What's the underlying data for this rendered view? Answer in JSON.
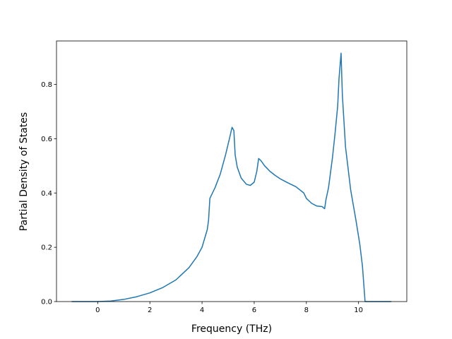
{
  "chart_data": {
    "type": "line",
    "title": "",
    "xlabel": "Frequency (THz)",
    "ylabel": "Partial Density of States",
    "xlim": [
      -1.58,
      11.85
    ],
    "ylim": [
      0.0,
      0.96
    ],
    "x_ticks": [
      0,
      2,
      4,
      6,
      8,
      10
    ],
    "y_ticks": [
      0.0,
      0.2,
      0.4,
      0.6,
      0.8
    ],
    "x_tick_labels": [
      "0",
      "2",
      "4",
      "6",
      "8",
      "10"
    ],
    "y_tick_labels": [
      "0.0",
      "0.2",
      "0.4",
      "0.6",
      "0.8"
    ],
    "grid": false,
    "legend": "none",
    "series": [
      {
        "color": "#1f77b4",
        "points": [
          [
            -1.0,
            0.0
          ],
          [
            0.0,
            0.0
          ],
          [
            0.5,
            0.002
          ],
          [
            1.0,
            0.008
          ],
          [
            1.5,
            0.018
          ],
          [
            2.0,
            0.032
          ],
          [
            2.5,
            0.052
          ],
          [
            3.0,
            0.08
          ],
          [
            3.5,
            0.125
          ],
          [
            3.8,
            0.165
          ],
          [
            4.0,
            0.2
          ],
          [
            4.2,
            0.265
          ],
          [
            4.25,
            0.3
          ],
          [
            4.3,
            0.38
          ],
          [
            4.5,
            0.42
          ],
          [
            4.7,
            0.47
          ],
          [
            4.9,
            0.54
          ],
          [
            5.05,
            0.6
          ],
          [
            5.15,
            0.642
          ],
          [
            5.22,
            0.63
          ],
          [
            5.27,
            0.54
          ],
          [
            5.35,
            0.495
          ],
          [
            5.5,
            0.455
          ],
          [
            5.7,
            0.432
          ],
          [
            5.85,
            0.428
          ],
          [
            6.0,
            0.44
          ],
          [
            6.1,
            0.48
          ],
          [
            6.17,
            0.527
          ],
          [
            6.25,
            0.52
          ],
          [
            6.4,
            0.5
          ],
          [
            6.6,
            0.48
          ],
          [
            6.8,
            0.465
          ],
          [
            7.0,
            0.452
          ],
          [
            7.3,
            0.437
          ],
          [
            7.6,
            0.423
          ],
          [
            7.9,
            0.4
          ],
          [
            8.0,
            0.38
          ],
          [
            8.2,
            0.362
          ],
          [
            8.4,
            0.352
          ],
          [
            8.6,
            0.35
          ],
          [
            8.7,
            0.342
          ],
          [
            8.75,
            0.375
          ],
          [
            8.85,
            0.42
          ],
          [
            9.0,
            0.53
          ],
          [
            9.1,
            0.62
          ],
          [
            9.2,
            0.72
          ],
          [
            9.25,
            0.82
          ],
          [
            9.33,
            0.915
          ],
          [
            9.38,
            0.76
          ],
          [
            9.5,
            0.57
          ],
          [
            9.7,
            0.41
          ],
          [
            9.9,
            0.3
          ],
          [
            10.05,
            0.21
          ],
          [
            10.15,
            0.13
          ],
          [
            10.25,
            0.0
          ],
          [
            11.25,
            0.0
          ]
        ]
      }
    ]
  }
}
